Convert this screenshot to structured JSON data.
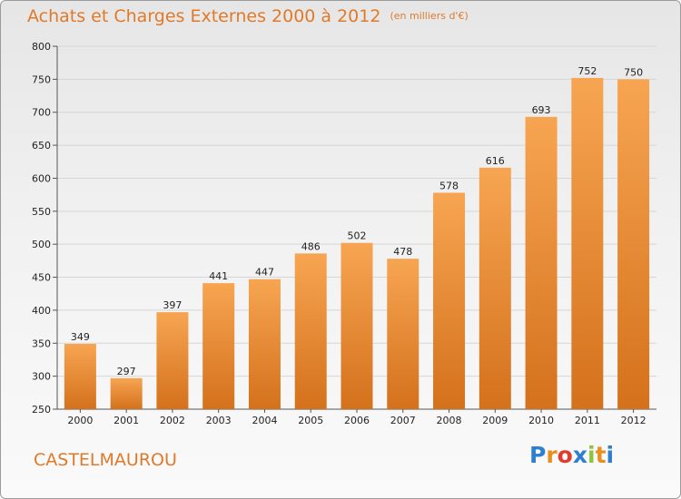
{
  "title": "Achats et Charges Externes 2000 à 2012",
  "unit": "(en milliers d'€)",
  "commune": "CASTELMAUROU",
  "logo": {
    "text": "Proxiti",
    "letters": [
      "P",
      "r",
      "o",
      "x",
      "i",
      "t",
      "i"
    ],
    "colors": [
      "#2f7fd1",
      "#e8901f",
      "#e23b2e",
      "#2f7fd1",
      "#8cc43c",
      "#e8901f",
      "#2f7fd1"
    ]
  },
  "chart_data": {
    "type": "bar",
    "title": "Achats et Charges Externes 2000 à 2012",
    "subtitle": "(en milliers d'€)",
    "xlabel": "",
    "ylabel": "",
    "categories": [
      "2000",
      "2001",
      "2002",
      "2003",
      "2004",
      "2005",
      "2006",
      "2007",
      "2008",
      "2009",
      "2010",
      "2011",
      "2012"
    ],
    "values": [
      349,
      297,
      397,
      441,
      447,
      486,
      502,
      478,
      578,
      616,
      693,
      752,
      750
    ],
    "ylim": [
      250,
      800
    ],
    "yticks": [
      250,
      300,
      350,
      400,
      450,
      500,
      550,
      600,
      650,
      700,
      750,
      800
    ],
    "grid": "horizontal",
    "legend": "none",
    "bar_color_top": "#f7a552",
    "bar_color_bottom": "#d4711c"
  }
}
